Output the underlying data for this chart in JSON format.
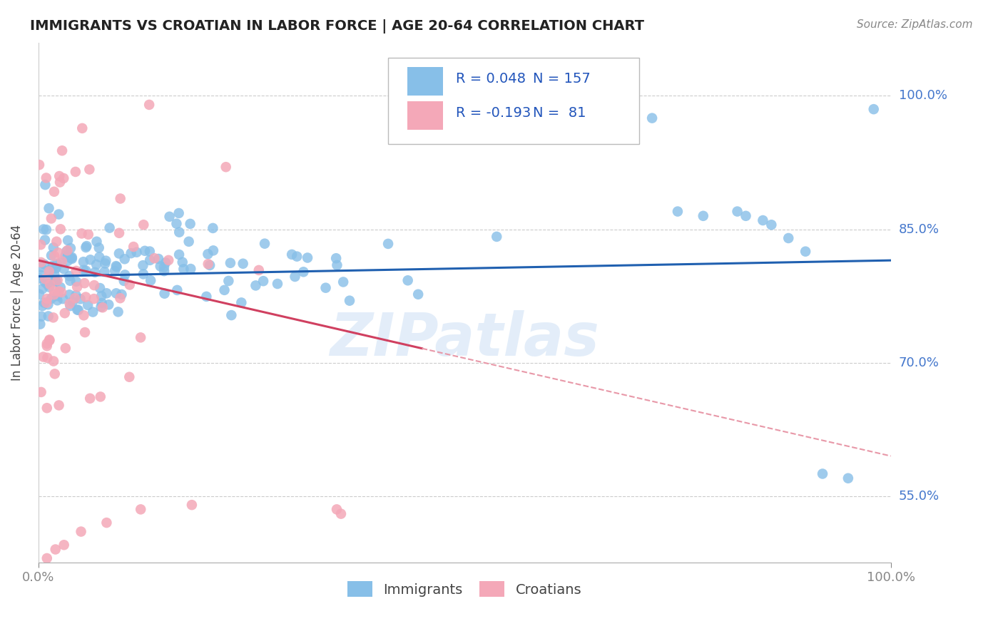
{
  "title": "IMMIGRANTS VS CROATIAN IN LABOR FORCE | AGE 20-64 CORRELATION CHART",
  "source": "Source: ZipAtlas.com",
  "ylabel": "In Labor Force | Age 20-64",
  "xlim": [
    0.0,
    1.0
  ],
  "ylim": [
    0.475,
    1.06
  ],
  "yticks": [
    0.55,
    0.7,
    0.85,
    1.0
  ],
  "ytick_labels": [
    "55.0%",
    "70.0%",
    "85.0%",
    "100.0%"
  ],
  "xtick_labels": [
    "0.0%",
    "100.0%"
  ],
  "blue_color": "#87bfe8",
  "pink_color": "#f4a8b8",
  "blue_line_color": "#2060b0",
  "pink_line_color": "#d04060",
  "pink_dash_color": "#e898a8",
  "legend_R_blue": "R = 0.048",
  "legend_N_blue": "N = 157",
  "legend_R_pink": "R = -0.193",
  "legend_N_pink": "N =  81",
  "legend_label_blue": "Immigrants",
  "legend_label_pink": "Croatians",
  "grid_color": "#cccccc",
  "watermark": "ZIPatlas",
  "blue_R": 0.048,
  "pink_R": -0.193,
  "blue_N": 157,
  "pink_N": 81,
  "blue_seed": 42,
  "pink_seed": 7
}
